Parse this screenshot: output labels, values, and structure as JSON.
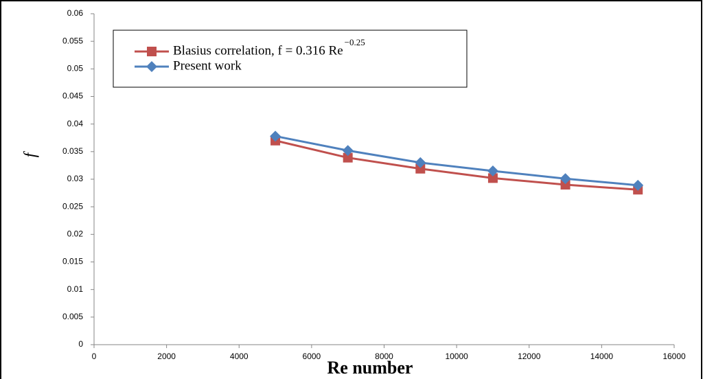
{
  "chart_data": {
    "type": "line",
    "x_label": "Re number",
    "y_label": "f",
    "x": [
      5000,
      7000,
      9000,
      11000,
      13000,
      15000
    ],
    "series": [
      {
        "name": "Blasius correlation, f = 0.316 Re",
        "name_exponent": "−0.25",
        "color": "#c0504d",
        "marker": "square",
        "values": [
          0.037,
          0.0339,
          0.0319,
          0.0302,
          0.029,
          0.0281
        ]
      },
      {
        "name": "Present work",
        "color": "#4f81bd",
        "marker": "diamond",
        "values": [
          0.0378,
          0.0352,
          0.033,
          0.0315,
          0.0301,
          0.0289
        ]
      }
    ],
    "xlim": [
      0,
      16000
    ],
    "xticks": [
      0,
      2000,
      4000,
      6000,
      8000,
      10000,
      12000,
      14000,
      16000
    ],
    "ylim": [
      0,
      0.06
    ],
    "yticks": [
      0,
      0.005,
      0.01,
      0.015,
      0.02,
      0.025,
      0.03,
      0.035,
      0.04,
      0.045,
      0.05,
      0.055,
      0.06
    ],
    "grid": false,
    "legend": "top-left"
  }
}
